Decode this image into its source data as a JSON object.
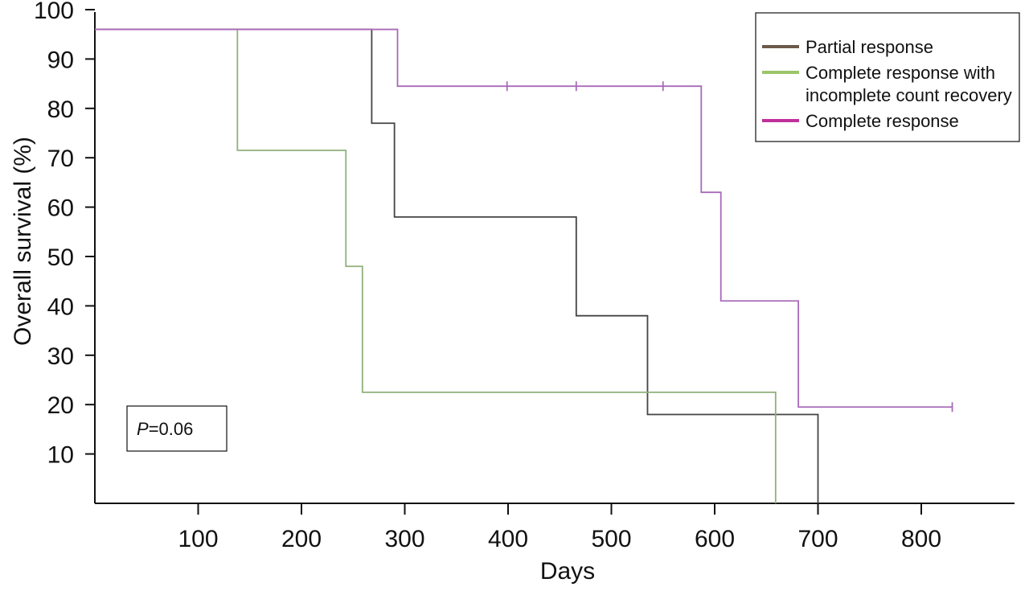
{
  "chart_data": {
    "type": "line",
    "title": "",
    "xlabel": "Days",
    "ylabel": "Overall survival (%)",
    "xlim": [
      0,
      880
    ],
    "ylim": [
      0,
      100
    ],
    "x_ticks": [
      100,
      200,
      300,
      400,
      500,
      600,
      700,
      800
    ],
    "y_ticks": [
      10,
      20,
      30,
      40,
      50,
      60,
      70,
      80,
      90,
      100
    ],
    "annotation": {
      "italic": "P",
      "text": "=0.06"
    },
    "legend_position": "top-right",
    "series": [
      {
        "name": "Partial response",
        "color": "#6b5a4a",
        "line_color": "#444444",
        "points": [
          [
            0,
            96
          ],
          [
            268,
            96
          ],
          [
            268,
            77
          ],
          [
            290,
            77
          ],
          [
            290,
            58
          ],
          [
            466,
            58
          ],
          [
            466,
            38
          ],
          [
            535,
            38
          ],
          [
            535,
            18
          ],
          [
            700,
            18
          ],
          [
            700,
            0
          ]
        ],
        "censored": []
      },
      {
        "name": "Complete response with incomplete count recovery",
        "color": "#9bc56a",
        "line_color": "#8fb07a",
        "points": [
          [
            138,
            96
          ],
          [
            138,
            71.5
          ],
          [
            243,
            71.5
          ],
          [
            243,
            48
          ],
          [
            259,
            48
          ],
          [
            259,
            22.5
          ],
          [
            659,
            22.5
          ],
          [
            659,
            0
          ]
        ],
        "censored": []
      },
      {
        "name": "Complete response",
        "color": "#c0309a",
        "line_color": "#a86ab8",
        "points": [
          [
            0,
            96
          ],
          [
            293,
            96
          ],
          [
            293,
            84.5
          ],
          [
            587,
            84.5
          ],
          [
            587,
            63
          ],
          [
            606,
            63
          ],
          [
            606,
            41
          ],
          [
            681,
            41
          ],
          [
            681,
            19.5
          ],
          [
            830,
            19.5
          ]
        ],
        "censored": [
          399,
          466,
          550,
          830
        ]
      }
    ],
    "legend_labels": [
      [
        "Partial response"
      ],
      [
        "Complete response with",
        "incomplete count recovery"
      ],
      [
        "Complete response"
      ]
    ]
  }
}
